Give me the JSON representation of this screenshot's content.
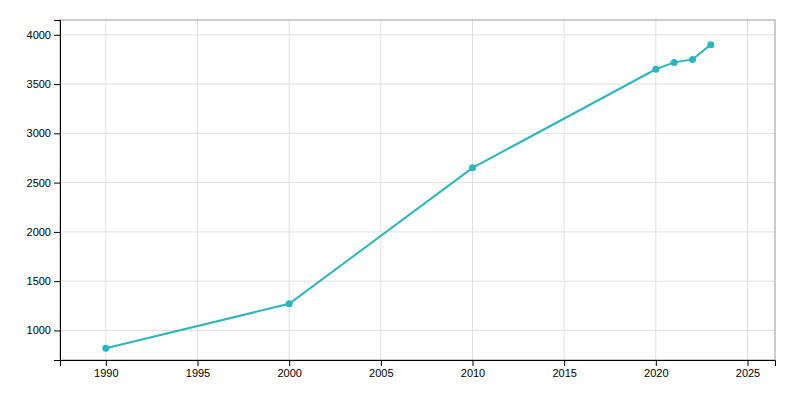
{
  "chart_data": {
    "type": "line",
    "x": [
      1990,
      2000,
      2010,
      2020,
      2021,
      2022,
      2023
    ],
    "values": [
      820,
      1270,
      2650,
      3650,
      3720,
      3750,
      3900
    ],
    "color": "#2BB5BE",
    "marker": "circle",
    "xlim": [
      1987.5,
      2026.5
    ],
    "ylim": [
      700,
      4150
    ],
    "xticks": [
      1990,
      1995,
      2000,
      2005,
      2010,
      2015,
      2020,
      2025
    ],
    "yticks": [
      1000,
      1500,
      2000,
      2500,
      3000,
      3500,
      4000
    ],
    "grid": true
  }
}
